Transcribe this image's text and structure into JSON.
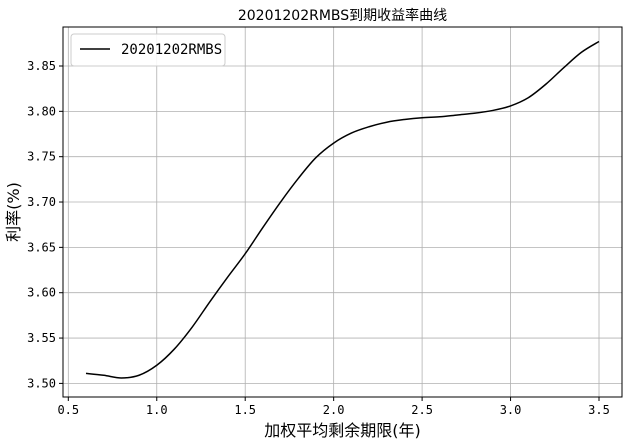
{
  "chart_data": {
    "type": "line",
    "title": "20201202RMBS到期收益率曲线",
    "xlabel": "加权平均剩余期限(年)",
    "ylabel": "利率(%)",
    "xlim": [
      0.47,
      3.63
    ],
    "ylim": [
      3.485,
      3.893
    ],
    "xticks": [
      0.5,
      1.0,
      1.5,
      2.0,
      2.5,
      3.0,
      3.5
    ],
    "xtick_labels": [
      "0.5",
      "1.0",
      "1.5",
      "2.0",
      "2.5",
      "3.0",
      "3.5"
    ],
    "yticks": [
      3.5,
      3.55,
      3.6,
      3.65,
      3.7,
      3.75,
      3.8,
      3.85
    ],
    "ytick_labels": [
      "3.50",
      "3.55",
      "3.60",
      "3.65",
      "3.70",
      "3.75",
      "3.80",
      "3.85"
    ],
    "grid": true,
    "legend_position": "top-left",
    "colors": {
      "line": "#000000",
      "grid": "#b0b0b0"
    },
    "series": [
      {
        "name": "20201202RMBS",
        "x": [
          0.6,
          0.7,
          0.8,
          0.9,
          1.0,
          1.1,
          1.2,
          1.3,
          1.4,
          1.5,
          1.6,
          1.7,
          1.8,
          1.9,
          2.0,
          2.1,
          2.2,
          2.3,
          2.4,
          2.5,
          2.6,
          2.7,
          2.8,
          2.9,
          3.0,
          3.1,
          3.2,
          3.3,
          3.4,
          3.5
        ],
        "y": [
          3.511,
          3.509,
          3.506,
          3.509,
          3.52,
          3.538,
          3.562,
          3.59,
          3.617,
          3.643,
          3.672,
          3.7,
          3.726,
          3.749,
          3.765,
          3.776,
          3.783,
          3.788,
          3.791,
          3.793,
          3.794,
          3.796,
          3.798,
          3.801,
          3.806,
          3.815,
          3.83,
          3.848,
          3.865,
          3.877
        ]
      }
    ]
  }
}
